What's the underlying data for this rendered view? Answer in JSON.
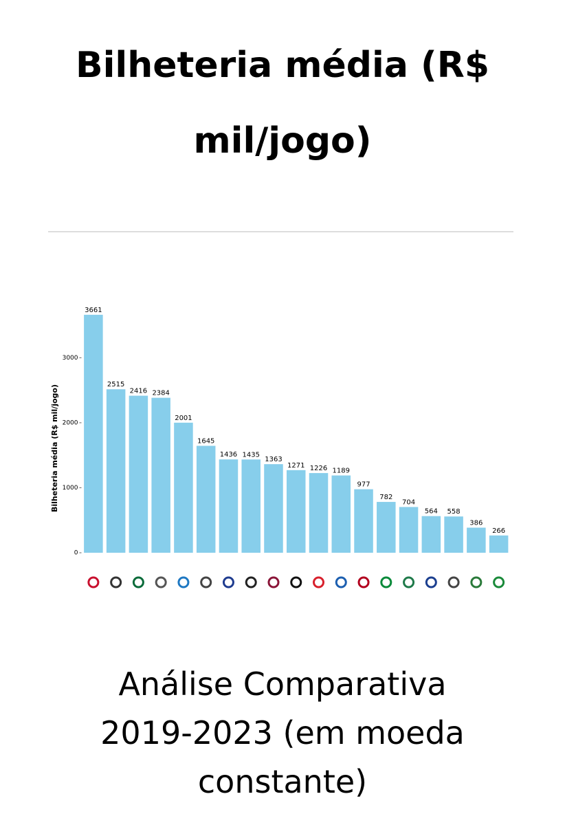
{
  "title": "Bilheteria média (R$ mil/jogo)",
  "footer": "Análise Comparativa 2019-2023 (em moeda constante)",
  "chart_data": {
    "type": "bar",
    "y_label": "Bilheteria média (R$ mil/jogo)",
    "categories": [
      null,
      null,
      null,
      null,
      null,
      null,
      null,
      null,
      null,
      null,
      null,
      null,
      null,
      null,
      null,
      null,
      null,
      null,
      null
    ],
    "values": [
      3661,
      2515,
      2416,
      2384,
      2001,
      1645,
      1436,
      1435,
      1363,
      1271,
      1226,
      1189,
      977,
      782,
      704,
      564,
      558,
      386,
      266
    ],
    "color": "#87ceeb",
    "ylim": [
      0,
      3850
    ],
    "yticks": [
      0,
      1000,
      2000,
      3000
    ],
    "grid": false
  }
}
